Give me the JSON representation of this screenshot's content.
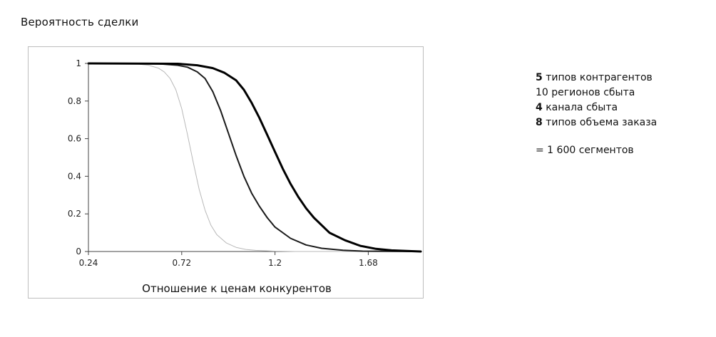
{
  "chart_data": {
    "type": "line",
    "ylabel": "Вероятность сделки",
    "xlabel": "Отношение к ценам конкурентов",
    "xlim": [
      0.24,
      1.95
    ],
    "ylim": [
      0,
      1
    ],
    "x_ticks": [
      "0.24",
      "0.72",
      "1.2",
      "1.68"
    ],
    "y_ticks": [
      "0",
      "0.2",
      "0.4",
      "0.6",
      "0.8",
      "1"
    ],
    "grid": false,
    "legend": "none",
    "series": [
      {
        "color": "#b8b8b8",
        "stroke": 1,
        "x": [
          0.24,
          0.4,
          0.5,
          0.55,
          0.6,
          0.63,
          0.66,
          0.69,
          0.72,
          0.75,
          0.78,
          0.81,
          0.84,
          0.87,
          0.9,
          0.95,
          1.0,
          1.05,
          1.1,
          1.2,
          1.3,
          1.95
        ],
        "y": [
          1.0,
          1.0,
          0.996,
          0.99,
          0.975,
          0.955,
          0.92,
          0.86,
          0.76,
          0.62,
          0.47,
          0.33,
          0.22,
          0.14,
          0.09,
          0.045,
          0.022,
          0.011,
          0.006,
          0.002,
          0.0,
          0.0
        ]
      },
      {
        "color": "#1a1a1a",
        "stroke": 2,
        "x": [
          0.24,
          0.6,
          0.7,
          0.75,
          0.8,
          0.84,
          0.88,
          0.92,
          0.96,
          1.0,
          1.04,
          1.08,
          1.12,
          1.16,
          1.2,
          1.28,
          1.36,
          1.44,
          1.55,
          1.65,
          1.95
        ],
        "y": [
          1.0,
          0.998,
          0.99,
          0.98,
          0.955,
          0.92,
          0.85,
          0.75,
          0.63,
          0.51,
          0.4,
          0.31,
          0.24,
          0.18,
          0.13,
          0.07,
          0.035,
          0.017,
          0.007,
          0.002,
          0.0
        ]
      },
      {
        "color": "#000000",
        "stroke": 3,
        "x": [
          0.24,
          0.7,
          0.8,
          0.88,
          0.94,
          1.0,
          1.04,
          1.08,
          1.12,
          1.16,
          1.2,
          1.24,
          1.28,
          1.32,
          1.36,
          1.4,
          1.48,
          1.56,
          1.64,
          1.72,
          1.8,
          1.95
        ],
        "y": [
          1.0,
          0.998,
          0.99,
          0.975,
          0.95,
          0.91,
          0.86,
          0.79,
          0.71,
          0.62,
          0.53,
          0.44,
          0.36,
          0.29,
          0.23,
          0.18,
          0.1,
          0.06,
          0.03,
          0.014,
          0.006,
          0.0
        ]
      }
    ]
  },
  "segments": {
    "items": [
      {
        "num": "5",
        "text": "типов контрагентов"
      },
      {
        "num": "10",
        "text": "регионов сбыта"
      },
      {
        "num": "4",
        "text": "канала сбыта"
      },
      {
        "num": "8",
        "text": "типов объема заказа"
      }
    ],
    "total": "= 1 600 сегментов"
  }
}
